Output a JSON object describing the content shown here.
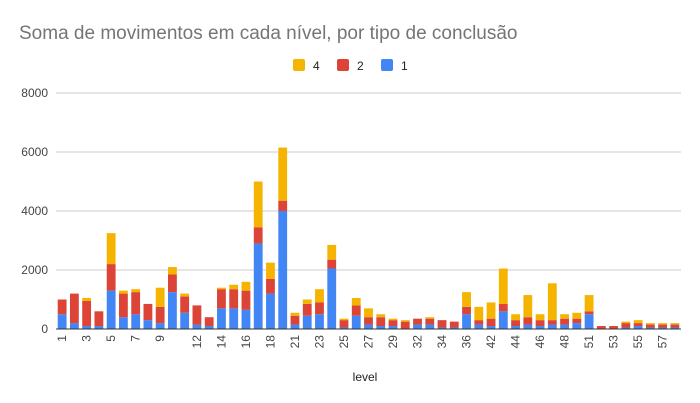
{
  "chart_data": {
    "type": "bar",
    "stacked": true,
    "title": "Soma de movimentos em cada nível, por tipo de conclusão",
    "xlabel": "level",
    "ylabel": "",
    "ylim": [
      0,
      8000
    ],
    "yticks": [
      0,
      2000,
      4000,
      6000,
      8000
    ],
    "grid": true,
    "legend_position": "top",
    "categories": [
      "1",
      "2",
      "3",
      "4",
      "5",
      "6",
      "7",
      "8",
      "9",
      "10",
      "11",
      "12",
      "13",
      "14",
      "15",
      "16",
      "17",
      "18",
      "19",
      "21",
      "22",
      "23",
      "24",
      "25",
      "26",
      "27",
      "28",
      "29",
      "30",
      "32",
      "33",
      "34",
      "35",
      "36",
      "41",
      "42",
      "43",
      "44",
      "45",
      "46",
      "47",
      "48",
      "49",
      "51",
      "52",
      "53",
      "54",
      "55",
      "56",
      "57",
      "58"
    ],
    "xtick_labels": [
      "1",
      "3",
      "5",
      "7",
      "9",
      "12",
      "14",
      "16",
      "18",
      "21",
      "23",
      "25",
      "27",
      "29",
      "32",
      "34",
      "36",
      "42",
      "44",
      "46",
      "48",
      "51",
      "53",
      "55",
      "57"
    ],
    "series": [
      {
        "name": "1",
        "color": "#4285f4",
        "values": [
          500,
          200,
          100,
          100,
          1300,
          400,
          500,
          300,
          200,
          1250,
          550,
          150,
          100,
          700,
          700,
          650,
          2900,
          1200,
          4000,
          150,
          450,
          500,
          2050,
          50,
          450,
          150,
          100,
          100,
          0,
          150,
          150,
          50,
          50,
          500,
          150,
          100,
          600,
          100,
          150,
          100,
          150,
          150,
          200,
          500,
          0,
          0,
          50,
          100,
          50,
          50,
          50
        ]
      },
      {
        "name": "2",
        "color": "#db4437",
        "values": [
          500,
          1000,
          850,
          500,
          900,
          800,
          750,
          550,
          550,
          600,
          550,
          650,
          300,
          650,
          650,
          650,
          550,
          500,
          350,
          300,
          400,
          400,
          300,
          250,
          350,
          250,
          300,
          200,
          250,
          200,
          200,
          250,
          200,
          250,
          150,
          250,
          250,
          200,
          250,
          200,
          150,
          200,
          150,
          100,
          100,
          100,
          150,
          100,
          100,
          100,
          100
        ]
      },
      {
        "name": "4",
        "color": "#f4b400",
        "values": [
          0,
          0,
          100,
          0,
          1050,
          100,
          100,
          0,
          650,
          250,
          100,
          0,
          0,
          50,
          150,
          300,
          1550,
          550,
          1800,
          100,
          150,
          450,
          500,
          50,
          250,
          300,
          100,
          50,
          50,
          0,
          50,
          0,
          0,
          500,
          450,
          550,
          1200,
          200,
          750,
          200,
          1250,
          150,
          200,
          550,
          0,
          0,
          50,
          100,
          50,
          50,
          50
        ]
      }
    ]
  }
}
